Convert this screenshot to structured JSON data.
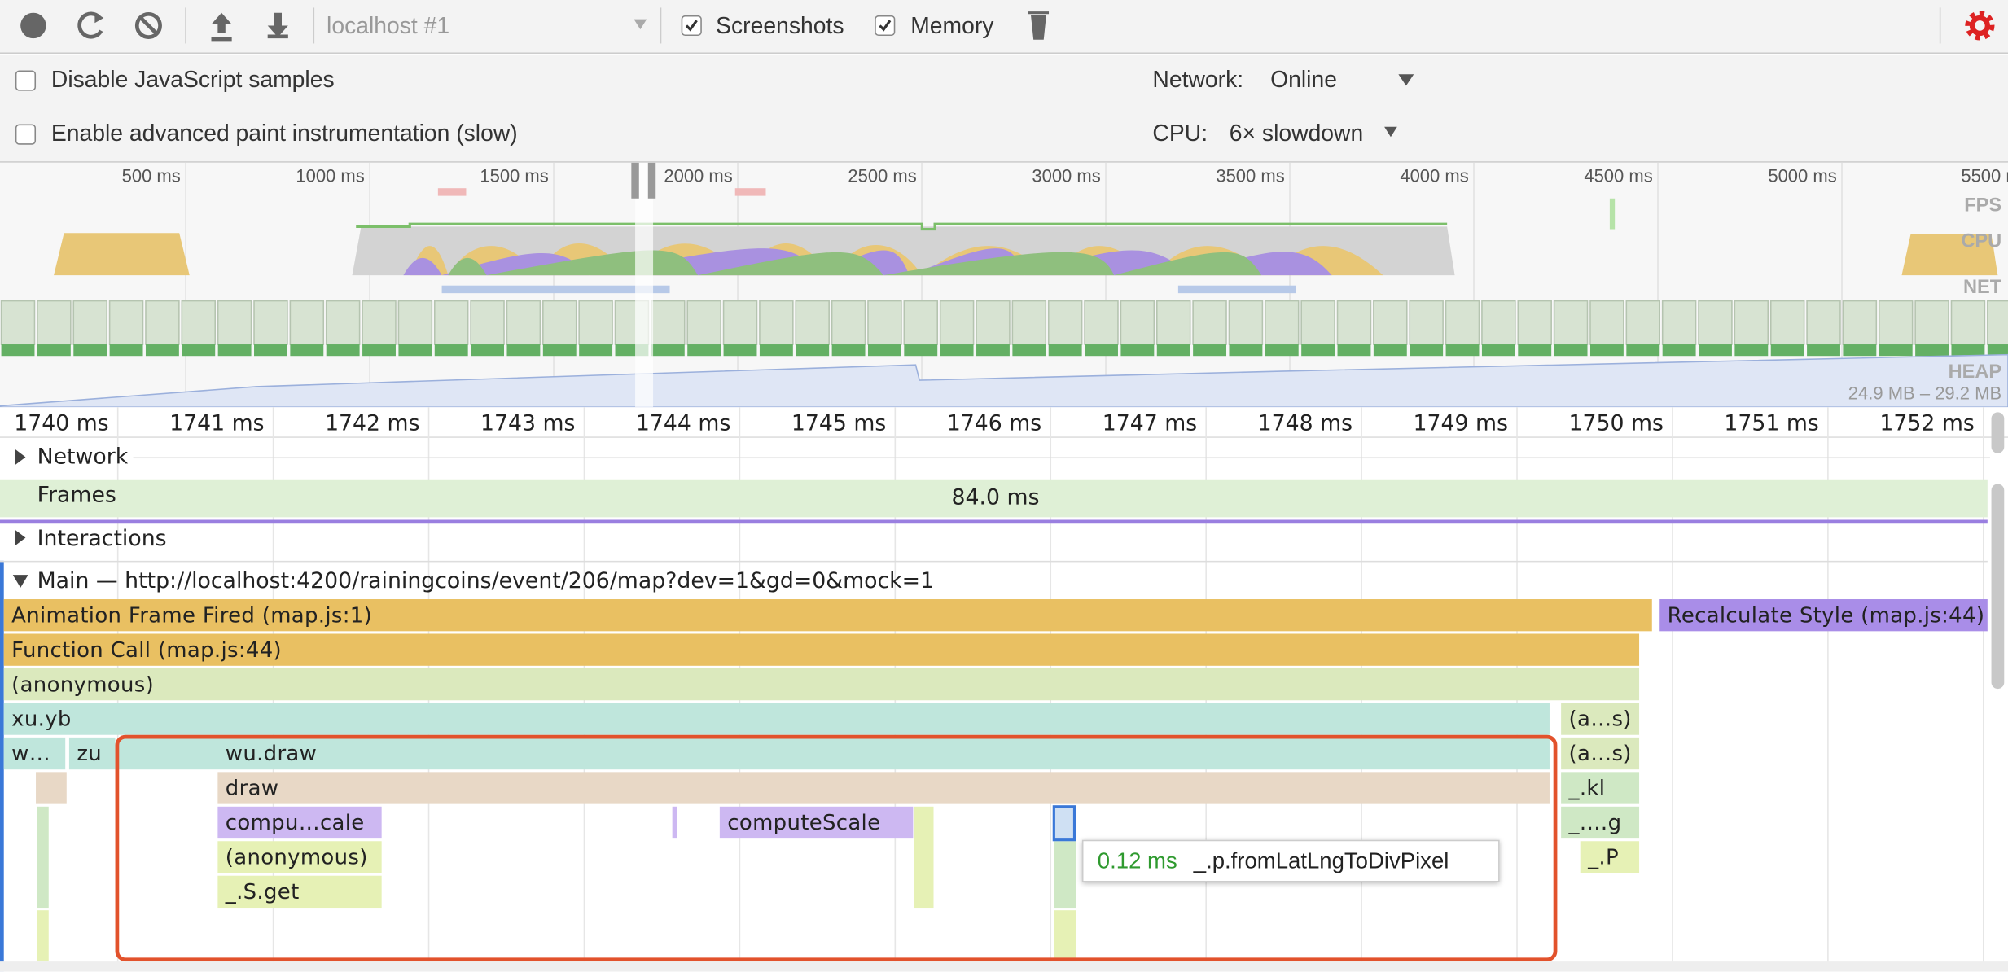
{
  "toolbar": {
    "target": "localhost #1",
    "checkboxes": [
      "Screenshots",
      "Memory"
    ]
  },
  "settings": {
    "disable_js": "Disable JavaScript samples",
    "paint": "Enable advanced paint instrumentation (slow)",
    "network_label": "Network:",
    "network_value": "Online",
    "cpu_label": "CPU:",
    "cpu_value": "6× slowdown"
  },
  "overview": {
    "ticks": [
      "500 ms",
      "1000 ms",
      "1500 ms",
      "2000 ms",
      "2500 ms",
      "3000 ms",
      "3500 ms",
      "4000 ms",
      "4500 ms",
      "5000 ms",
      "5500 m"
    ],
    "labels": [
      "FPS",
      "CPU",
      "NET",
      "HEAP"
    ],
    "heap_range": "24.9 MB – 29.2 MB"
  },
  "ruler": {
    "ticks": [
      "1740 ms",
      "1741 ms",
      "1742 ms",
      "1743 ms",
      "1744 ms",
      "1745 ms",
      "1746 ms",
      "1747 ms",
      "1748 ms",
      "1749 ms",
      "1750 ms",
      "1751 ms",
      "1752 ms"
    ]
  },
  "tracks": {
    "network": "Network",
    "frames": "Frames",
    "frame_duration": "84.0 ms",
    "interactions": "Interactions",
    "main": "Main — http://localhost:4200/rainingcoins/event/206/map?dev=1&gd=0&mock=1"
  },
  "flame": [
    "Animation Frame Fired (map.js:1)",
    "Recalculate Style (map.js:44)",
    "Function Call (map.js:44)",
    "(anonymous)",
    "xu.yb",
    "(a…s)",
    "w…",
    "zu",
    "wu.draw",
    "(a…s)",
    "draw",
    "_.kl",
    "compu…cale",
    "computeScale",
    "_.…g",
    "(anonymous)",
    "_.P",
    "_.S.get"
  ],
  "tooltip": {
    "duration": "0.12 ms",
    "name": "_.p.fromLatLngToDivPixel"
  }
}
